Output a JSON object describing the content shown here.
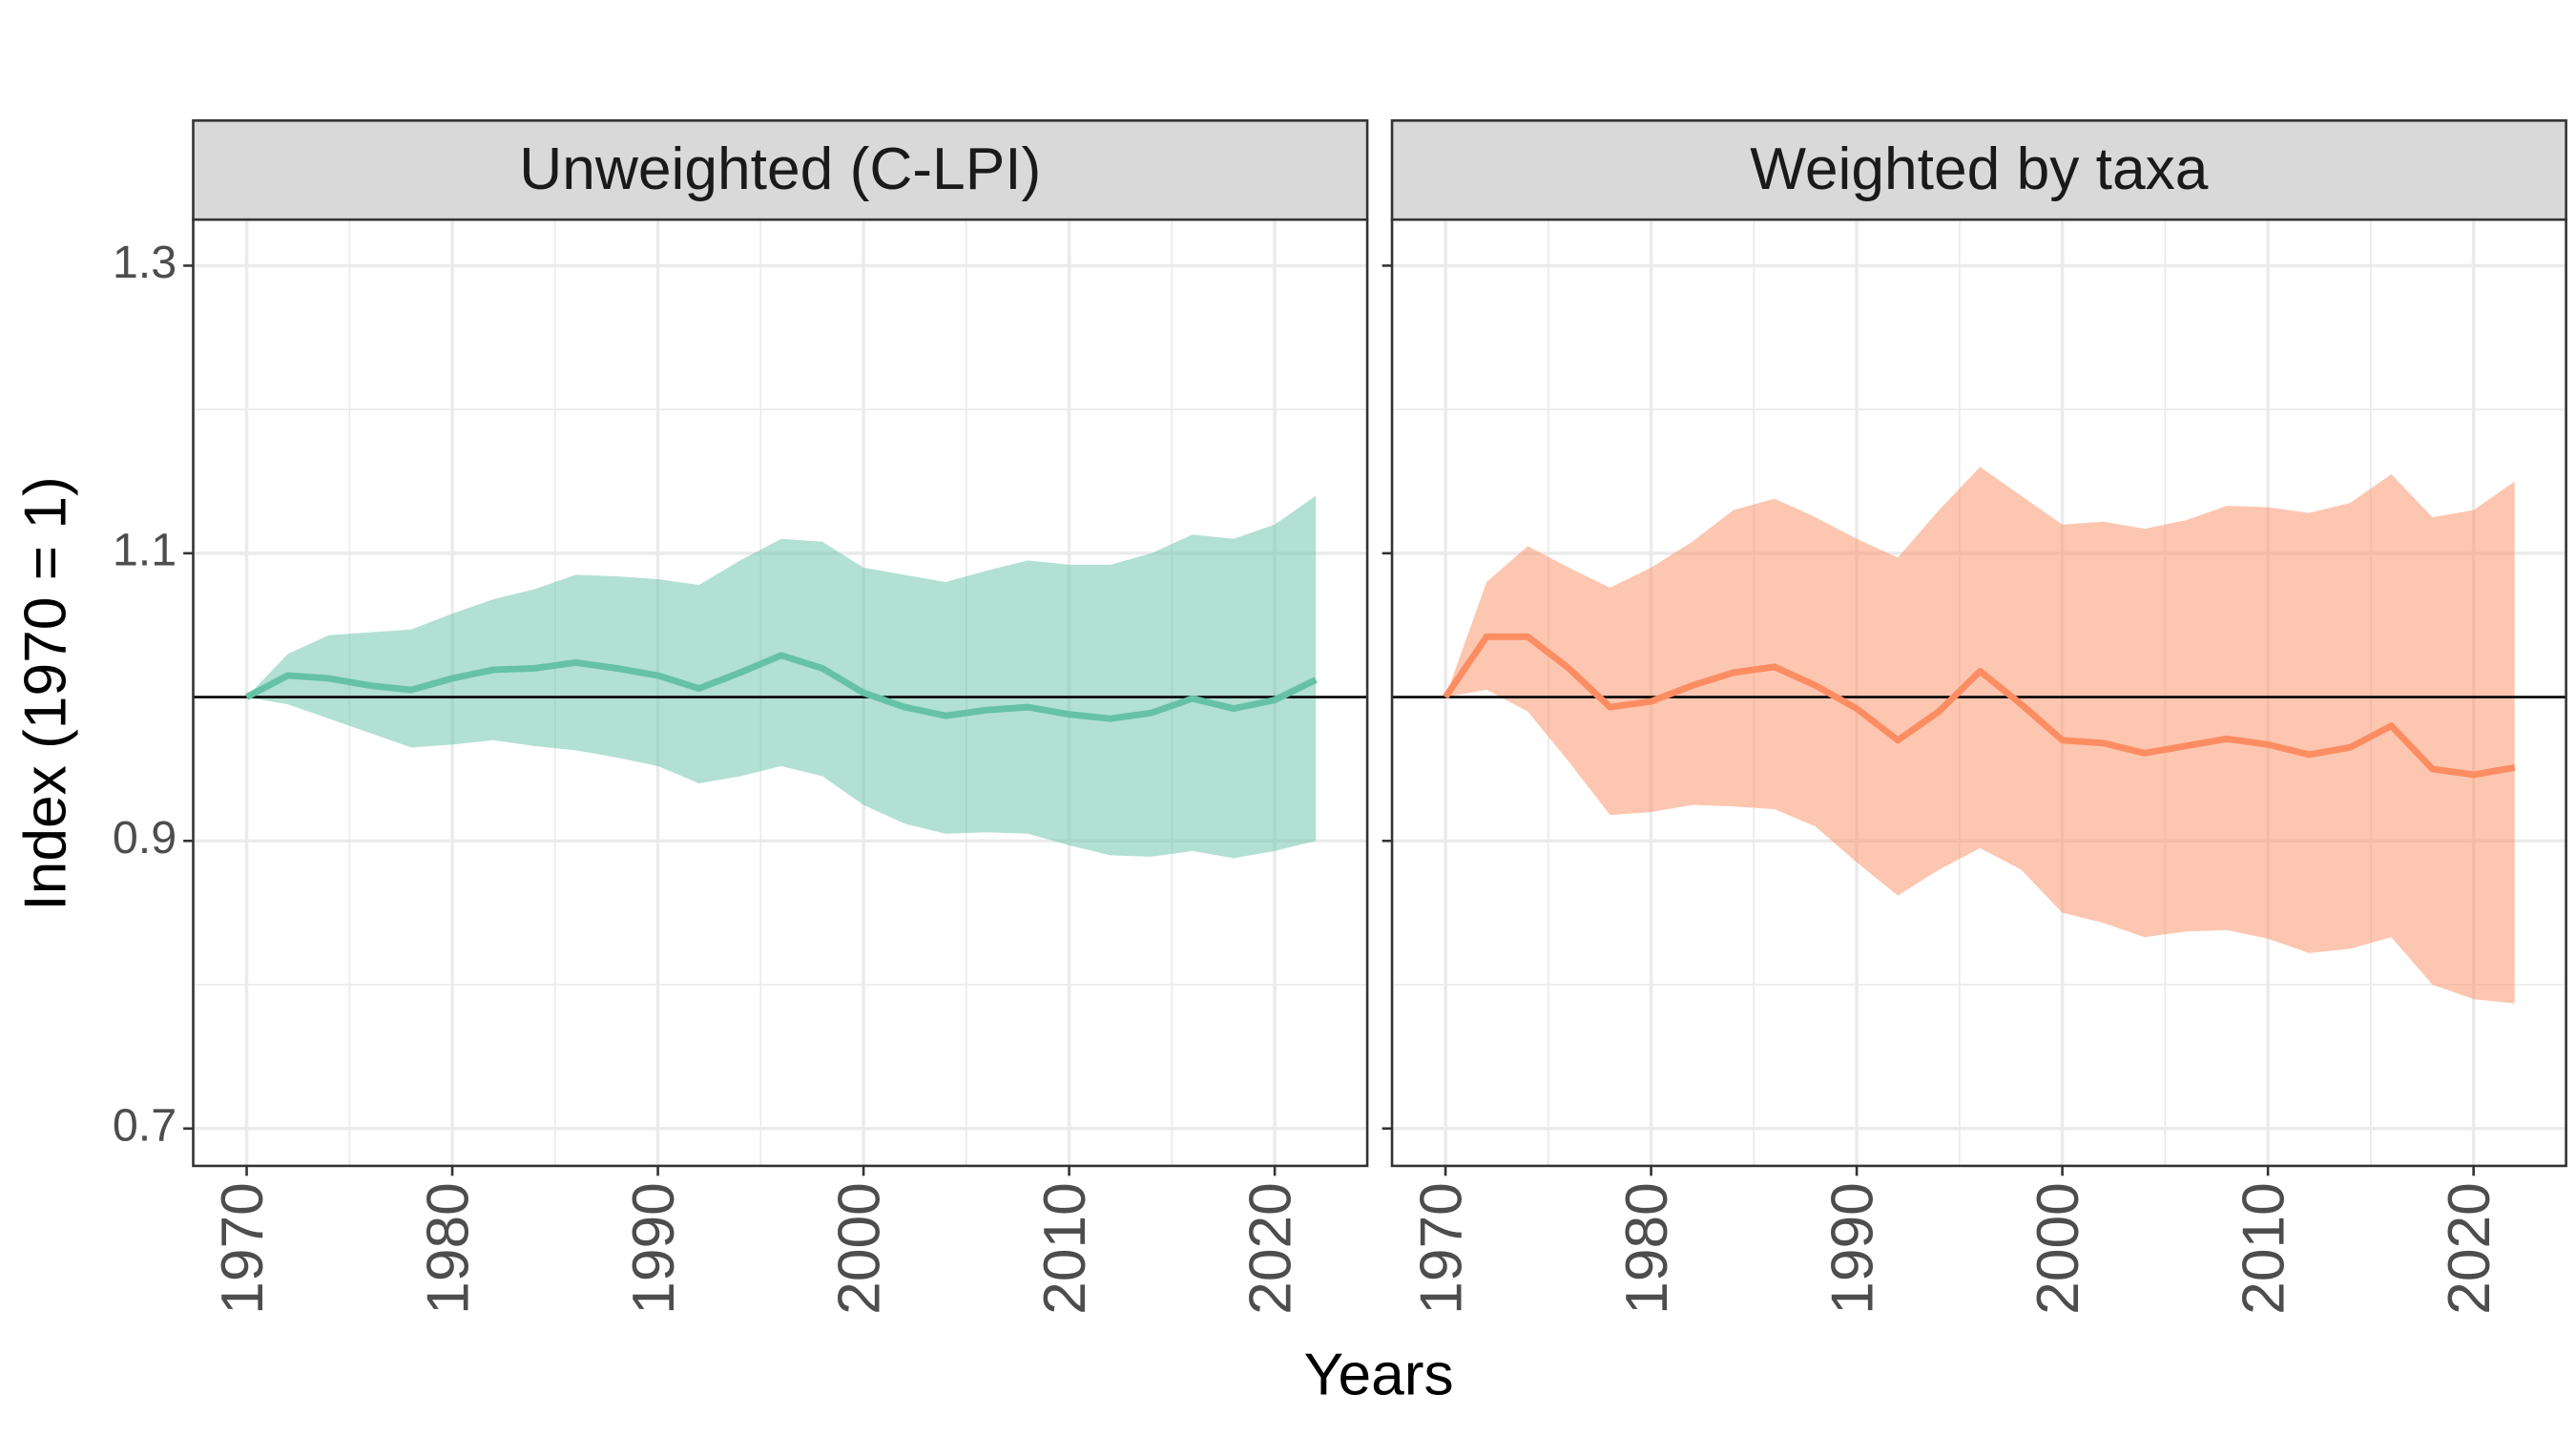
{
  "chart_data": [
    {
      "type": "line",
      "title": "Unweighted (C-LPI)",
      "xlabel": "Years",
      "ylabel": "Index (1970 = 1)",
      "color": "#66c2a5",
      "x": [
        1970,
        1972,
        1974,
        1976,
        1978,
        1980,
        1982,
        1984,
        1986,
        1988,
        1990,
        1992,
        1994,
        1996,
        1998,
        2000,
        2002,
        2004,
        2006,
        2008,
        2010,
        2012,
        2014,
        2016,
        2018,
        2020,
        2022
      ],
      "values": [
        1.0,
        1.015,
        1.013,
        1.008,
        1.005,
        1.013,
        1.019,
        1.02,
        1.024,
        1.02,
        1.015,
        1.006,
        1.017,
        1.029,
        1.02,
        1.003,
        0.993,
        0.987,
        0.991,
        0.993,
        0.988,
        0.985,
        0.989,
        0.999,
        0.992,
        0.998,
        1.012
      ],
      "lower": [
        1.0,
        0.995,
        0.985,
        0.975,
        0.965,
        0.967,
        0.97,
        0.966,
        0.963,
        0.958,
        0.952,
        0.94,
        0.945,
        0.952,
        0.945,
        0.925,
        0.912,
        0.905,
        0.906,
        0.905,
        0.897,
        0.89,
        0.889,
        0.893,
        0.888,
        0.893,
        0.9
      ],
      "upper": [
        1.0,
        1.03,
        1.043,
        1.045,
        1.047,
        1.058,
        1.068,
        1.075,
        1.085,
        1.084,
        1.082,
        1.078,
        1.095,
        1.11,
        1.108,
        1.09,
        1.085,
        1.08,
        1.088,
        1.095,
        1.092,
        1.092,
        1.1,
        1.113,
        1.11,
        1.12,
        1.14
      ],
      "hline": 1,
      "xlim": [
        1967.4,
        2024.5
      ],
      "ylim": [
        0.674,
        1.332
      ],
      "xticks": [
        1970,
        1980,
        1990,
        2000,
        2010,
        2020
      ],
      "yticks": [
        0.7,
        0.9,
        1.1,
        1.3
      ],
      "x_minor_grid": [
        1975,
        1985,
        1995,
        2005,
        2015
      ],
      "y_minor_grid": [
        0.8,
        1.0,
        1.2
      ],
      "grid": true
    },
    {
      "type": "line",
      "title": "Weighted by taxa",
      "color": "#fc8d62",
      "x": [
        1970,
        1972,
        1974,
        1976,
        1978,
        1980,
        1982,
        1984,
        1986,
        1988,
        1990,
        1992,
        1994,
        1996,
        1998,
        2000,
        2002,
        2004,
        2006,
        2008,
        2010,
        2012,
        2014,
        2016,
        2018,
        2020,
        2022
      ],
      "values": [
        1.0,
        1.042,
        1.042,
        1.02,
        0.993,
        0.997,
        1.008,
        1.017,
        1.021,
        1.008,
        0.992,
        0.97,
        0.99,
        1.018,
        0.995,
        0.97,
        0.968,
        0.961,
        0.966,
        0.971,
        0.967,
        0.96,
        0.965,
        0.98,
        0.95,
        0.946,
        0.951
      ],
      "lower": [
        1.0,
        1.005,
        0.99,
        0.955,
        0.918,
        0.92,
        0.925,
        0.924,
        0.922,
        0.91,
        0.885,
        0.862,
        0.88,
        0.895,
        0.88,
        0.85,
        0.843,
        0.833,
        0.837,
        0.838,
        0.832,
        0.822,
        0.825,
        0.833,
        0.8,
        0.79,
        0.787
      ],
      "upper": [
        1.0,
        1.08,
        1.105,
        1.09,
        1.076,
        1.09,
        1.108,
        1.13,
        1.138,
        1.125,
        1.11,
        1.097,
        1.13,
        1.16,
        1.14,
        1.12,
        1.122,
        1.117,
        1.123,
        1.133,
        1.132,
        1.128,
        1.135,
        1.155,
        1.125,
        1.13,
        1.15
      ],
      "hline": 1,
      "xlim": [
        1967.4,
        2024.5
      ],
      "ylim": [
        0.674,
        1.332
      ],
      "xticks": [
        1970,
        1980,
        1990,
        2000,
        2010,
        2020
      ],
      "yticks": [
        0.7,
        0.9,
        1.1,
        1.3
      ],
      "x_minor_grid": [
        1975,
        1985,
        1995,
        2005,
        2015
      ],
      "y_minor_grid": [
        0.8,
        1.0,
        1.2
      ],
      "grid": true
    }
  ]
}
